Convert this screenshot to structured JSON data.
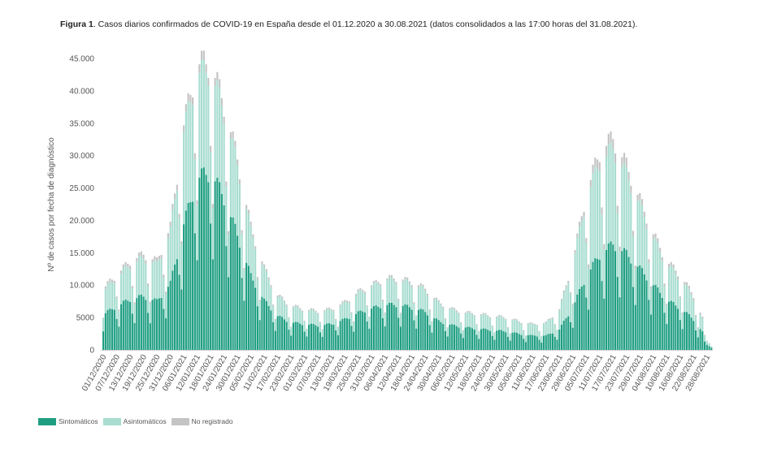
{
  "caption": {
    "bold": "Figura 1",
    "text": ". Casos diarios confirmados de COVID-19 en España desde el 01.12.2020 a 30.08.2021 (datos consolidados a las 17:00 horas del 31.08.2021)."
  },
  "chart_data": {
    "type": "bar",
    "stacked": true,
    "ylabel": "Nº de casos por fecha de diagnóstico",
    "ylim": [
      0,
      45000
    ],
    "yticks": [
      0,
      5000,
      10000,
      15000,
      20000,
      25000,
      30000,
      35000,
      40000,
      45000
    ],
    "ytick_labels": [
      "0",
      "5000",
      "10.000",
      "15.000",
      "20.000",
      "25.000",
      "30.000",
      "35.000",
      "40.000",
      "45.000"
    ],
    "x_tick_labels": [
      "01/12/2020",
      "07/12/2020",
      "13/12/2020",
      "19/12/2020",
      "25/12/2020",
      "31/12/2020",
      "06/01/2021",
      "12/01/2021",
      "18/01/2021",
      "24/01/2021",
      "30/01/2021",
      "05/02/2021",
      "11/02/2021",
      "17/02/2021",
      "23/02/2021",
      "01/03/2021",
      "07/03/2021",
      "13/03/2021",
      "19/03/2021",
      "25/03/2021",
      "31/03/2021",
      "06/04/2021",
      "12/04/2021",
      "18/04/2021",
      "24/04/2021",
      "30/04/2021",
      "06/05/2021",
      "12/05/2021",
      "18/05/2021",
      "24/05/2021",
      "30/05/2021",
      "05/06/2021",
      "11/06/2021",
      "17/06/2021",
      "23/06/2021",
      "29/06/2021",
      "05/07/2021",
      "11/07/2021",
      "17/07/2021",
      "23/07/2021",
      "29/07/2021",
      "04/08/2021",
      "10/08/2021",
      "16/08/2021",
      "22/08/2021",
      "28/08/2021"
    ],
    "weekly_totals": [
      9000,
      11000,
      13000,
      14000,
      13000,
      18000,
      33000,
      42000,
      42000,
      36000,
      28000,
      18000,
      12000,
      8000,
      6500,
      6000,
      5700,
      6000,
      7000,
      8500,
      9500,
      10500,
      10500,
      10000,
      9000,
      7000,
      6000,
      5500,
      5300,
      5000,
      4800,
      4200,
      3800,
      4000,
      6000,
      13000,
      23000,
      29000,
      31000,
      27000,
      22000,
      17000,
      13000,
      11000,
      8000,
      3000
    ],
    "weekly_symptomatic_share": [
      0.58,
      0.58,
      0.57,
      0.56,
      0.55,
      0.54,
      0.56,
      0.6,
      0.62,
      0.62,
      0.6,
      0.6,
      0.6,
      0.62,
      0.62,
      0.63,
      0.63,
      0.63,
      0.64,
      0.64,
      0.64,
      0.63,
      0.63,
      0.62,
      0.62,
      0.6,
      0.6,
      0.6,
      0.58,
      0.58,
      0.57,
      0.56,
      0.55,
      0.52,
      0.5,
      0.48,
      0.47,
      0.48,
      0.5,
      0.52,
      0.54,
      0.56,
      0.56,
      0.56,
      0.56,
      0.56
    ],
    "weekly_unregistered_share": [
      0.04,
      0.04,
      0.04,
      0.04,
      0.04,
      0.04,
      0.03,
      0.03,
      0.03,
      0.03,
      0.03,
      0.03,
      0.03,
      0.03,
      0.03,
      0.03,
      0.03,
      0.03,
      0.03,
      0.03,
      0.03,
      0.03,
      0.03,
      0.03,
      0.03,
      0.03,
      0.03,
      0.03,
      0.03,
      0.03,
      0.03,
      0.03,
      0.03,
      0.03,
      0.03,
      0.03,
      0.04,
      0.05,
      0.05,
      0.05,
      0.04,
      0.04,
      0.04,
      0.04,
      0.05,
      0.05
    ],
    "weekday_factor": [
      0.55,
      1.05,
      1.1,
      1.1,
      1.05,
      1.0,
      0.75
    ],
    "series": [
      {
        "name": "Sintomáticos",
        "color": "#1f9e82"
      },
      {
        "name": "Asintomáticos",
        "color": "#a8ddd0"
      },
      {
        "name": "No registrado",
        "color": "#c4c4c4"
      }
    ],
    "legend_position": "bottom-left",
    "grid": false
  }
}
